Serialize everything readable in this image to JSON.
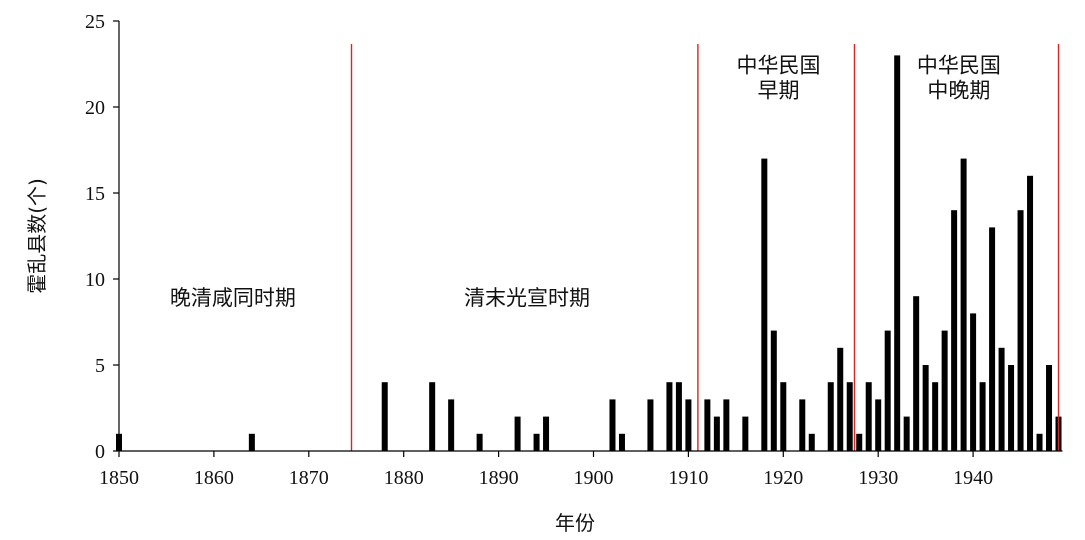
{
  "chart_data": {
    "type": "bar",
    "xlabel": "年份",
    "ylabel": "霍乱县数(个)",
    "xlim": [
      1850,
      1949
    ],
    "ylim": [
      0,
      25
    ],
    "xticks": [
      1850,
      1860,
      1870,
      1880,
      1890,
      1900,
      1910,
      1920,
      1930,
      1940
    ],
    "yticks": [
      0,
      5,
      10,
      15,
      20,
      25
    ],
    "grid": false,
    "bar_color": "#000000",
    "divider_color": "#d62728",
    "dividers": [
      1874.5,
      1911,
      1927.5,
      1949
    ],
    "periods": [
      {
        "name": "晚清咸同时期",
        "lines": [
          "晚清咸同时期"
        ],
        "x_center": 1862,
        "y": 8.5
      },
      {
        "name": "清末光宣时期",
        "lines": [
          "清末光宣时期"
        ],
        "x_center": 1893,
        "y": 8.5
      },
      {
        "name": "中华民国早期",
        "lines": [
          "中华民国",
          "早期"
        ],
        "x_center": 1919.5,
        "y": 22
      },
      {
        "name": "中华民国中晚期",
        "lines": [
          "中华民国",
          "中晚期"
        ],
        "x_center": 1938.5,
        "y": 22
      }
    ],
    "x": [
      1850,
      1864,
      1878,
      1883,
      1885,
      1888,
      1892,
      1894,
      1895,
      1902,
      1903,
      1906,
      1908,
      1909,
      1910,
      1912,
      1913,
      1914,
      1916,
      1918,
      1919,
      1920,
      1922,
      1923,
      1925,
      1926,
      1927,
      1928,
      1929,
      1930,
      1931,
      1932,
      1933,
      1934,
      1935,
      1936,
      1937,
      1938,
      1939,
      1940,
      1941,
      1942,
      1943,
      1944,
      1945,
      1946,
      1947,
      1948,
      1949
    ],
    "values": [
      1,
      1,
      4,
      4,
      3,
      1,
      2,
      1,
      2,
      3,
      1,
      3,
      4,
      4,
      3,
      3,
      2,
      3,
      2,
      17,
      7,
      4,
      3,
      1,
      4,
      6,
      4,
      1,
      4,
      3,
      7,
      23,
      2,
      9,
      5,
      4,
      7,
      14,
      17,
      8,
      4,
      13,
      6,
      5,
      14,
      16,
      1,
      5,
      2
    ]
  }
}
